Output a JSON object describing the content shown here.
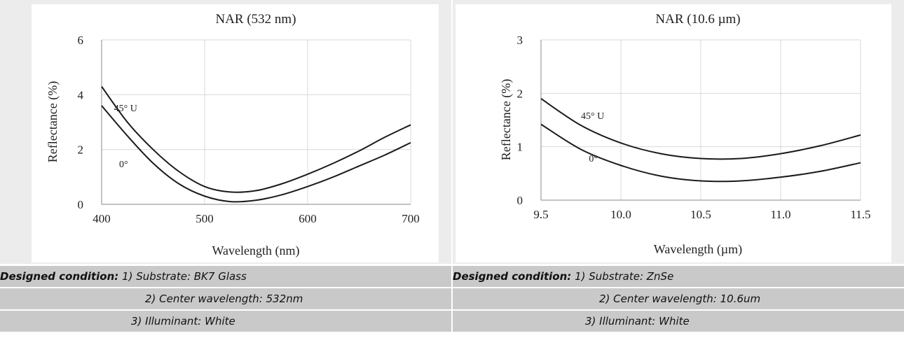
{
  "chart_data": [
    {
      "type": "line",
      "title": "NAR (532 nm)",
      "xlabel": "Wavelength (nm)",
      "ylabel": "Reflectance (%)",
      "xlim": [
        400,
        700
      ],
      "ylim": [
        0,
        6
      ],
      "xticks": [
        "400",
        "500",
        "600",
        "700"
      ],
      "yticks": [
        "0",
        "2",
        "4",
        "6"
      ],
      "grid": true,
      "series": [
        {
          "name": "45° U",
          "x": [
            400,
            425,
            450,
            475,
            500,
            525,
            550,
            575,
            600,
            625,
            650,
            675,
            700
          ],
          "y": [
            4.3,
            3.0,
            2.0,
            1.2,
            0.65,
            0.45,
            0.5,
            0.75,
            1.1,
            1.5,
            1.95,
            2.45,
            2.9
          ]
        },
        {
          "name": "0°",
          "x": [
            400,
            425,
            450,
            475,
            500,
            525,
            550,
            575,
            600,
            625,
            650,
            675,
            700
          ],
          "y": [
            3.6,
            2.5,
            1.5,
            0.75,
            0.3,
            0.1,
            0.15,
            0.35,
            0.65,
            1.0,
            1.4,
            1.8,
            2.25
          ]
        }
      ]
    },
    {
      "type": "line",
      "title": "NAR  (10.6 µm)",
      "xlabel": "Wavelength (µm)",
      "ylabel": "Reflectance (%)",
      "xlim": [
        9.5,
        11.5
      ],
      "ylim": [
        0,
        3
      ],
      "xticks": [
        "9.5",
        "10.0",
        "10.5",
        "11.0",
        "11.5"
      ],
      "yticks": [
        "0",
        "1",
        "2",
        "3"
      ],
      "grid": true,
      "series": [
        {
          "name": "45° U",
          "x": [
            9.5,
            9.75,
            10.0,
            10.25,
            10.5,
            10.75,
            11.0,
            11.25,
            11.5
          ],
          "y": [
            1.9,
            1.4,
            1.07,
            0.87,
            0.78,
            0.78,
            0.87,
            1.02,
            1.22
          ]
        },
        {
          "name": "0°",
          "x": [
            9.5,
            9.75,
            10.0,
            10.25,
            10.5,
            10.75,
            11.0,
            11.25,
            11.5
          ],
          "y": [
            1.42,
            0.95,
            0.65,
            0.45,
            0.36,
            0.36,
            0.43,
            0.54,
            0.7
          ]
        }
      ]
    }
  ],
  "captions": {
    "left": {
      "label": "Designed condition:",
      "line1": " 1) Substrate: BK7 Glass",
      "line2": "2) Center wavelength: 532nm",
      "line3": "3) Illuminant: White"
    },
    "right": {
      "label": "Designed condition:",
      "line1": " 1) Substrate: ZnSe",
      "line2": "2) Center wavelength: 10.6um",
      "line3": "3) Illuminant: White"
    }
  }
}
